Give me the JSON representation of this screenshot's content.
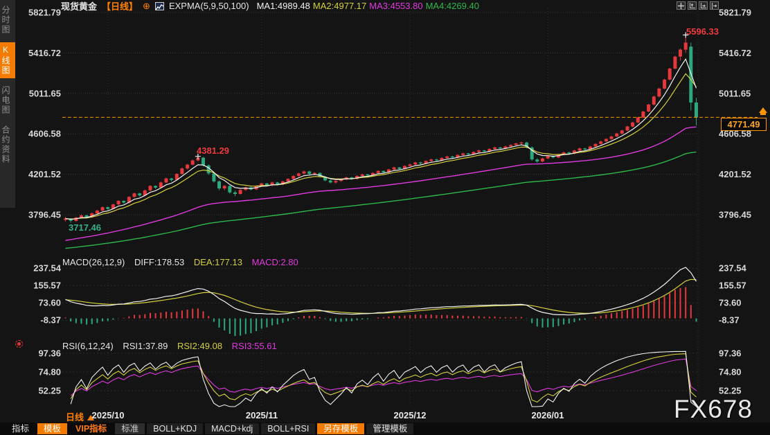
{
  "header": {
    "symbol": "现货黄金",
    "period_tag": "【日线】",
    "plus_icon": "⊕",
    "indicator_label": "EXPMA(5,9,50,100)",
    "ma_values": [
      {
        "label": "MA1:4989.48",
        "color": "#f2f2f2"
      },
      {
        "label": "MA2:4977.17",
        "color": "#d6d13e"
      },
      {
        "label": "MA3:4553.80",
        "color": "#e23ae2"
      },
      {
        "label": "MA4:4269.40",
        "color": "#2db84a"
      }
    ]
  },
  "sidebar": {
    "items": [
      {
        "label": "分时图",
        "active": false
      },
      {
        "label": "K线图",
        "active": true
      },
      {
        "label": "闪电图",
        "active": false
      },
      {
        "label": "合约资料",
        "active": false
      }
    ]
  },
  "window_icons": [
    "crosshair-icon",
    "axis-zoom-left-icon",
    "axis-zoom-right-icon",
    "axis-expand-icon"
  ],
  "annotations": {
    "high_label": "5596.33",
    "peak_label": "4381.29",
    "low_label": "3717.46",
    "last_price": "4771.49"
  },
  "macd_panel": {
    "title": "MACD(26,12,9)",
    "diff": "DIFF:178.53",
    "dea": "DEA:177.13",
    "macd": "MACD:2.80",
    "axis": [
      "237.54",
      "155.57",
      "73.60",
      "-8.37"
    ]
  },
  "rsi_panel": {
    "title": "RSI(6,12,24)",
    "rsi1": "RSI1:37.89",
    "rsi2": "RSI2:49.08",
    "rsi3": "RSI3:55.61",
    "axis": [
      "97.36",
      "74.80",
      "52.25"
    ]
  },
  "price_axis": [
    "5821.79",
    "5416.72",
    "5011.65",
    "4606.58",
    "4201.52",
    "3796.45"
  ],
  "time_axis": {
    "period_label": "日线",
    "months": [
      "2025/10",
      "2025/11",
      "2025/12",
      "2026/01"
    ]
  },
  "toolbar": {
    "items": [
      {
        "label": "指标",
        "style": "plain"
      },
      {
        "label": "模板",
        "style": "active-orange"
      },
      {
        "label": "VIP指标",
        "style": "orange-text"
      },
      {
        "label": "标准",
        "style": "light"
      },
      {
        "label": "BOLL+KDJ",
        "style": "dark"
      },
      {
        "label": "MACD+kdj",
        "style": "dark"
      },
      {
        "label": "BOLL+RSI",
        "style": "dark"
      },
      {
        "label": "另存模板",
        "style": "active-orange"
      },
      {
        "label": "管理模板",
        "style": "dark"
      }
    ]
  },
  "watermark": "FX678",
  "chart_data": {
    "type": "candlestick",
    "symbol": "现货黄金",
    "period": "日线",
    "price_gridlines": [
      5821.79,
      5416.72,
      5011.65,
      4606.58,
      4201.52,
      3796.45
    ],
    "macd_gridlines": [
      237.54,
      155.57,
      73.6,
      -8.37
    ],
    "rsi_gridlines": [
      97.36,
      74.8,
      52.25
    ],
    "last_price": 4771.49,
    "high_annotation": 5596.33,
    "peak_annotation": 4381.29,
    "low_annotation": 3717.46,
    "month_boundaries": [
      8,
      37,
      65,
      91
    ],
    "colors": {
      "up": "#e5383d",
      "down": "#2ca87c",
      "ma1": "#f2f2f2",
      "ma2": "#d6d13e",
      "ma3": "#df3adf",
      "ma4": "#2db84a",
      "accent": "#ff9500",
      "grid": "#3a3a3a",
      "axis_text": "#d8d8d8"
    },
    "indicators": {
      "expma": {
        "params": [
          5,
          9,
          50,
          100
        ],
        "seeds": {
          "ema50": 3540,
          "ema100": 3460
        }
      },
      "macd": {
        "params": [
          26,
          12,
          9
        ],
        "seeds": {
          "ema12": 3790,
          "ema26": 3700,
          "dea": 88
        },
        "last": {
          "diff": 178.53,
          "dea": 177.13,
          "macd": 2.8
        }
      },
      "rsi": {
        "params": [
          6,
          12,
          24
        ],
        "seeds": {
          "avg_gain": 6,
          "avg_loss": 6
        },
        "last": {
          "rsi1": 37.89,
          "rsi2": 49.08,
          "rsi3": 55.61
        }
      }
    },
    "candles": [
      [
        3745,
        3772,
        3729,
        3758
      ],
      [
        3758,
        3762,
        3717.46,
        3735
      ],
      [
        3735,
        3775,
        3726,
        3768
      ],
      [
        3768,
        3801,
        3757,
        3790
      ],
      [
        3790,
        3797,
        3760,
        3772
      ],
      [
        3772,
        3820,
        3765,
        3810
      ],
      [
        3810,
        3846,
        3800,
        3838
      ],
      [
        3838,
        3880,
        3830,
        3872
      ],
      [
        3872,
        3878,
        3842,
        3855
      ],
      [
        3855,
        3908,
        3848,
        3900
      ],
      [
        3900,
        3942,
        3892,
        3935
      ],
      [
        3935,
        3940,
        3905,
        3918
      ],
      [
        3918,
        3982,
        3910,
        3975
      ],
      [
        3975,
        4018,
        3966,
        4010
      ],
      [
        4010,
        4016,
        3978,
        3990
      ],
      [
        3990,
        4048,
        3982,
        4040
      ],
      [
        4040,
        4092,
        4032,
        4085
      ],
      [
        4085,
        4090,
        4055,
        4068
      ],
      [
        4068,
        4128,
        4060,
        4120
      ],
      [
        4120,
        4168,
        4112,
        4160
      ],
      [
        4160,
        4166,
        4130,
        4145
      ],
      [
        4145,
        4212,
        4138,
        4205
      ],
      [
        4205,
        4268,
        4198,
        4260
      ],
      [
        4260,
        4305,
        4248,
        4298
      ],
      [
        4298,
        4348,
        4290,
        4340
      ],
      [
        4340,
        4381.29,
        4330,
        4368
      ],
      [
        4368,
        4375,
        4280,
        4290
      ],
      [
        4290,
        4300,
        4195,
        4210
      ],
      [
        4210,
        4222,
        4118,
        4130
      ],
      [
        4130,
        4140,
        4042,
        4060
      ],
      [
        4060,
        4095,
        4040,
        4085
      ],
      [
        4085,
        4090,
        4008,
        4020
      ],
      [
        4020,
        4038,
        3982,
        4005
      ],
      [
        4005,
        4052,
        3998,
        4045
      ],
      [
        4045,
        4078,
        4036,
        4070
      ],
      [
        4070,
        4075,
        4040,
        4050
      ],
      [
        4050,
        4092,
        4042,
        4085
      ],
      [
        4085,
        4118,
        4076,
        4110
      ],
      [
        4110,
        4115,
        4080,
        4090
      ],
      [
        4090,
        4128,
        4082,
        4120
      ],
      [
        4120,
        4126,
        4090,
        4100
      ],
      [
        4100,
        4138,
        4092,
        4130
      ],
      [
        4130,
        4162,
        4122,
        4155
      ],
      [
        4155,
        4192,
        4146,
        4185
      ],
      [
        4185,
        4218,
        4176,
        4210
      ],
      [
        4210,
        4238,
        4200,
        4230
      ],
      [
        4230,
        4236,
        4196,
        4205
      ],
      [
        4205,
        4224,
        4192,
        4215
      ],
      [
        4215,
        4220,
        4168,
        4175
      ],
      [
        4175,
        4182,
        4132,
        4140
      ],
      [
        4140,
        4148,
        4110,
        4120
      ],
      [
        4120,
        4142,
        4108,
        4135
      ],
      [
        4135,
        4158,
        4125,
        4150
      ],
      [
        4150,
        4178,
        4142,
        4170
      ],
      [
        4170,
        4176,
        4146,
        4155
      ],
      [
        4155,
        4192,
        4148,
        4185
      ],
      [
        4185,
        4208,
        4178,
        4200
      ],
      [
        4200,
        4206,
        4180,
        4190
      ],
      [
        4190,
        4222,
        4182,
        4215
      ],
      [
        4215,
        4242,
        4208,
        4235
      ],
      [
        4235,
        4240,
        4210,
        4220
      ],
      [
        4220,
        4256,
        4212,
        4250
      ],
      [
        4250,
        4278,
        4242,
        4270
      ],
      [
        4270,
        4275,
        4245,
        4255
      ],
      [
        4255,
        4292,
        4248,
        4285
      ],
      [
        4285,
        4308,
        4278,
        4300
      ],
      [
        4300,
        4328,
        4292,
        4320
      ],
      [
        4320,
        4326,
        4298,
        4310
      ],
      [
        4310,
        4342,
        4302,
        4335
      ],
      [
        4335,
        4358,
        4326,
        4350
      ],
      [
        4350,
        4356,
        4328,
        4340
      ],
      [
        4340,
        4372,
        4332,
        4365
      ],
      [
        4365,
        4388,
        4356,
        4380
      ],
      [
        4380,
        4386,
        4358,
        4370
      ],
      [
        4370,
        4402,
        4362,
        4395
      ],
      [
        4395,
        4418,
        4386,
        4410
      ],
      [
        4410,
        4415,
        4388,
        4400
      ],
      [
        4400,
        4432,
        4392,
        4425
      ],
      [
        4425,
        4448,
        4416,
        4440
      ],
      [
        4440,
        4446,
        4418,
        4430
      ],
      [
        4430,
        4462,
        4422,
        4455
      ],
      [
        4455,
        4478,
        4446,
        4470
      ],
      [
        4470,
        4476,
        4448,
        4460
      ],
      [
        4460,
        4488,
        4452,
        4480
      ],
      [
        4480,
        4502,
        4472,
        4495
      ],
      [
        4495,
        4518,
        4486,
        4510
      ],
      [
        4510,
        4528,
        4498,
        4520
      ],
      [
        4520,
        4526,
        4462,
        4470
      ],
      [
        4470,
        4480,
        4338,
        4350
      ],
      [
        4350,
        4362,
        4316,
        4330
      ],
      [
        4330,
        4368,
        4322,
        4360
      ],
      [
        4360,
        4392,
        4352,
        4385
      ],
      [
        4385,
        4390,
        4362,
        4370
      ],
      [
        4370,
        4408,
        4362,
        4400
      ],
      [
        4400,
        4428,
        4392,
        4420
      ],
      [
        4420,
        4426,
        4398,
        4410
      ],
      [
        4410,
        4448,
        4402,
        4440
      ],
      [
        4440,
        4468,
        4432,
        4460
      ],
      [
        4460,
        4466,
        4438,
        4450
      ],
      [
        4450,
        4488,
        4442,
        4480
      ],
      [
        4480,
        4512,
        4472,
        4505
      ],
      [
        4505,
        4538,
        4496,
        4530
      ],
      [
        4530,
        4562,
        4522,
        4555
      ],
      [
        4555,
        4588,
        4546,
        4580
      ],
      [
        4580,
        4618,
        4572,
        4610
      ],
      [
        4610,
        4648,
        4602,
        4640
      ],
      [
        4640,
        4688,
        4632,
        4680
      ],
      [
        4680,
        4728,
        4672,
        4720
      ],
      [
        4720,
        4778,
        4712,
        4770
      ],
      [
        4770,
        4838,
        4762,
        4830
      ],
      [
        4830,
        4908,
        4822,
        4900
      ],
      [
        4900,
        4988,
        4892,
        4980
      ],
      [
        4980,
        5068,
        4972,
        5060
      ],
      [
        5060,
        5158,
        5052,
        5150
      ],
      [
        5150,
        5268,
        5142,
        5260
      ],
      [
        5260,
        5388,
        5252,
        5380
      ],
      [
        5380,
        5462,
        5340,
        5450
      ],
      [
        5450,
        5596.33,
        5420,
        5520
      ],
      [
        5480,
        5520,
        4840,
        4920
      ],
      [
        4920,
        4968,
        4690,
        4771.49
      ]
    ]
  }
}
